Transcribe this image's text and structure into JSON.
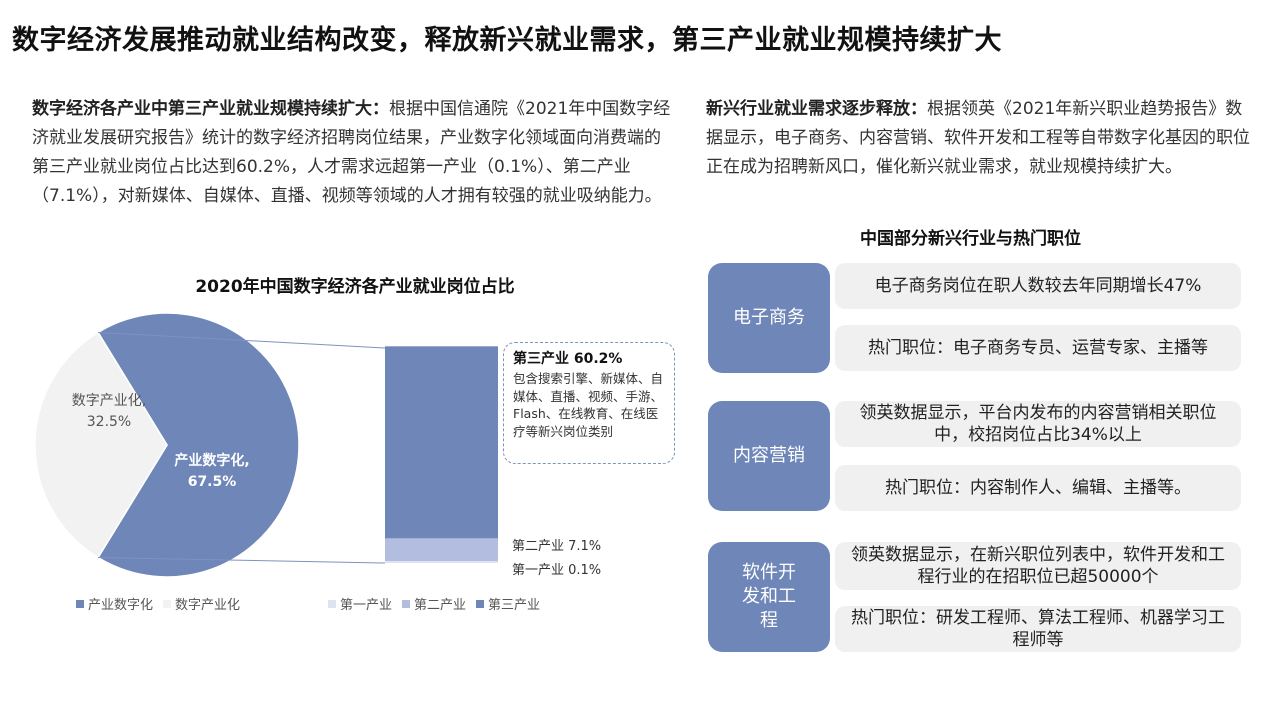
{
  "page": {
    "title": "数字经济发展推动就业结构改变，释放新兴就业需求，第三产业就业规模持续扩大"
  },
  "left_para": {
    "bold": "数字经济各产业中第三产业就业规模持续扩大：",
    "text": "根据中国信通院《2021年中国数字经济就业发展研究报告》统计的数字经济招聘岗位结果，产业数字化领域面向消费端的第三产业就业岗位占比达到60.2%，人才需求远超第一产业（0.1%）、第二产业（7.1%），对新媒体、自媒体、直播、视频等领域的人才拥有较强的就业吸纳能力。"
  },
  "right_para": {
    "bold": "新兴行业就业需求逐步释放：",
    "text": "根据领英《2021年新兴职业趋势报告》数据显示，电子商务、内容营销、软件开发和工程等自带数字化基因的职位正在成为招聘新风口，催化新兴就业需求，就业规模持续扩大。"
  },
  "chart_data": {
    "type": "pie",
    "title": "2020年中国数字经济各产业就业岗位占比",
    "pie": {
      "slices": [
        {
          "name": "产业数字化",
          "value": 67.5,
          "label": "产业数字化,",
          "value_label": "67.5%",
          "color": "#6f86b8"
        },
        {
          "name": "数字产业化",
          "value": 32.5,
          "label": "数字产业化,",
          "value_label": "32.5%",
          "color": "#f2f2f2"
        }
      ]
    },
    "breakdown": {
      "type": "stacked-bar",
      "of": "产业数字化",
      "segments": [
        {
          "name": "第一产业",
          "value": 0.1,
          "label": "第一产业 0.1%",
          "color": "#dde3f0"
        },
        {
          "name": "第二产业",
          "value": 7.1,
          "label": "第二产业 7.1%",
          "color": "#b2bde0"
        },
        {
          "name": "第三产业",
          "value": 60.2,
          "label": "第三产业 60.2%",
          "color": "#6f86b8"
        }
      ],
      "callout": {
        "head": "第三产业 60.2%",
        "body": "包含搜索引擎、新媒体、自媒体、直播、视频、手游、Flash、在线教育、在线医疗等新兴岗位类别"
      }
    },
    "legend": [
      "产业数字化",
      "数字产业化",
      "第一产业",
      "第二产业",
      "第三产业"
    ],
    "legend_colors": [
      "#6f86b8",
      "#f2f2f2",
      "#dde3f0",
      "#b2bde0",
      "#6f86b8"
    ]
  },
  "industries": {
    "title": "中国部分新兴行业与热门职位",
    "items": [
      {
        "name": "电子商务",
        "info": "电子商务岗位在职人数较去年同期增长47%",
        "jobs": "热门职位：电子商务专员、运营专家、主播等"
      },
      {
        "name": "内容营销",
        "info": "领英数据显示，平台内发布的内容营销相关职位中，校招岗位占比34%以上",
        "jobs": "热门职位：内容制作人、编辑、主播等。"
      },
      {
        "name": "软件开发和工程",
        "info": "领英数据显示，在新兴职位列表中，软件开发和工程行业的在招职位已超50000个",
        "jobs": "热门职位：研发工程师、算法工程师、机器学习工程师等"
      }
    ]
  }
}
